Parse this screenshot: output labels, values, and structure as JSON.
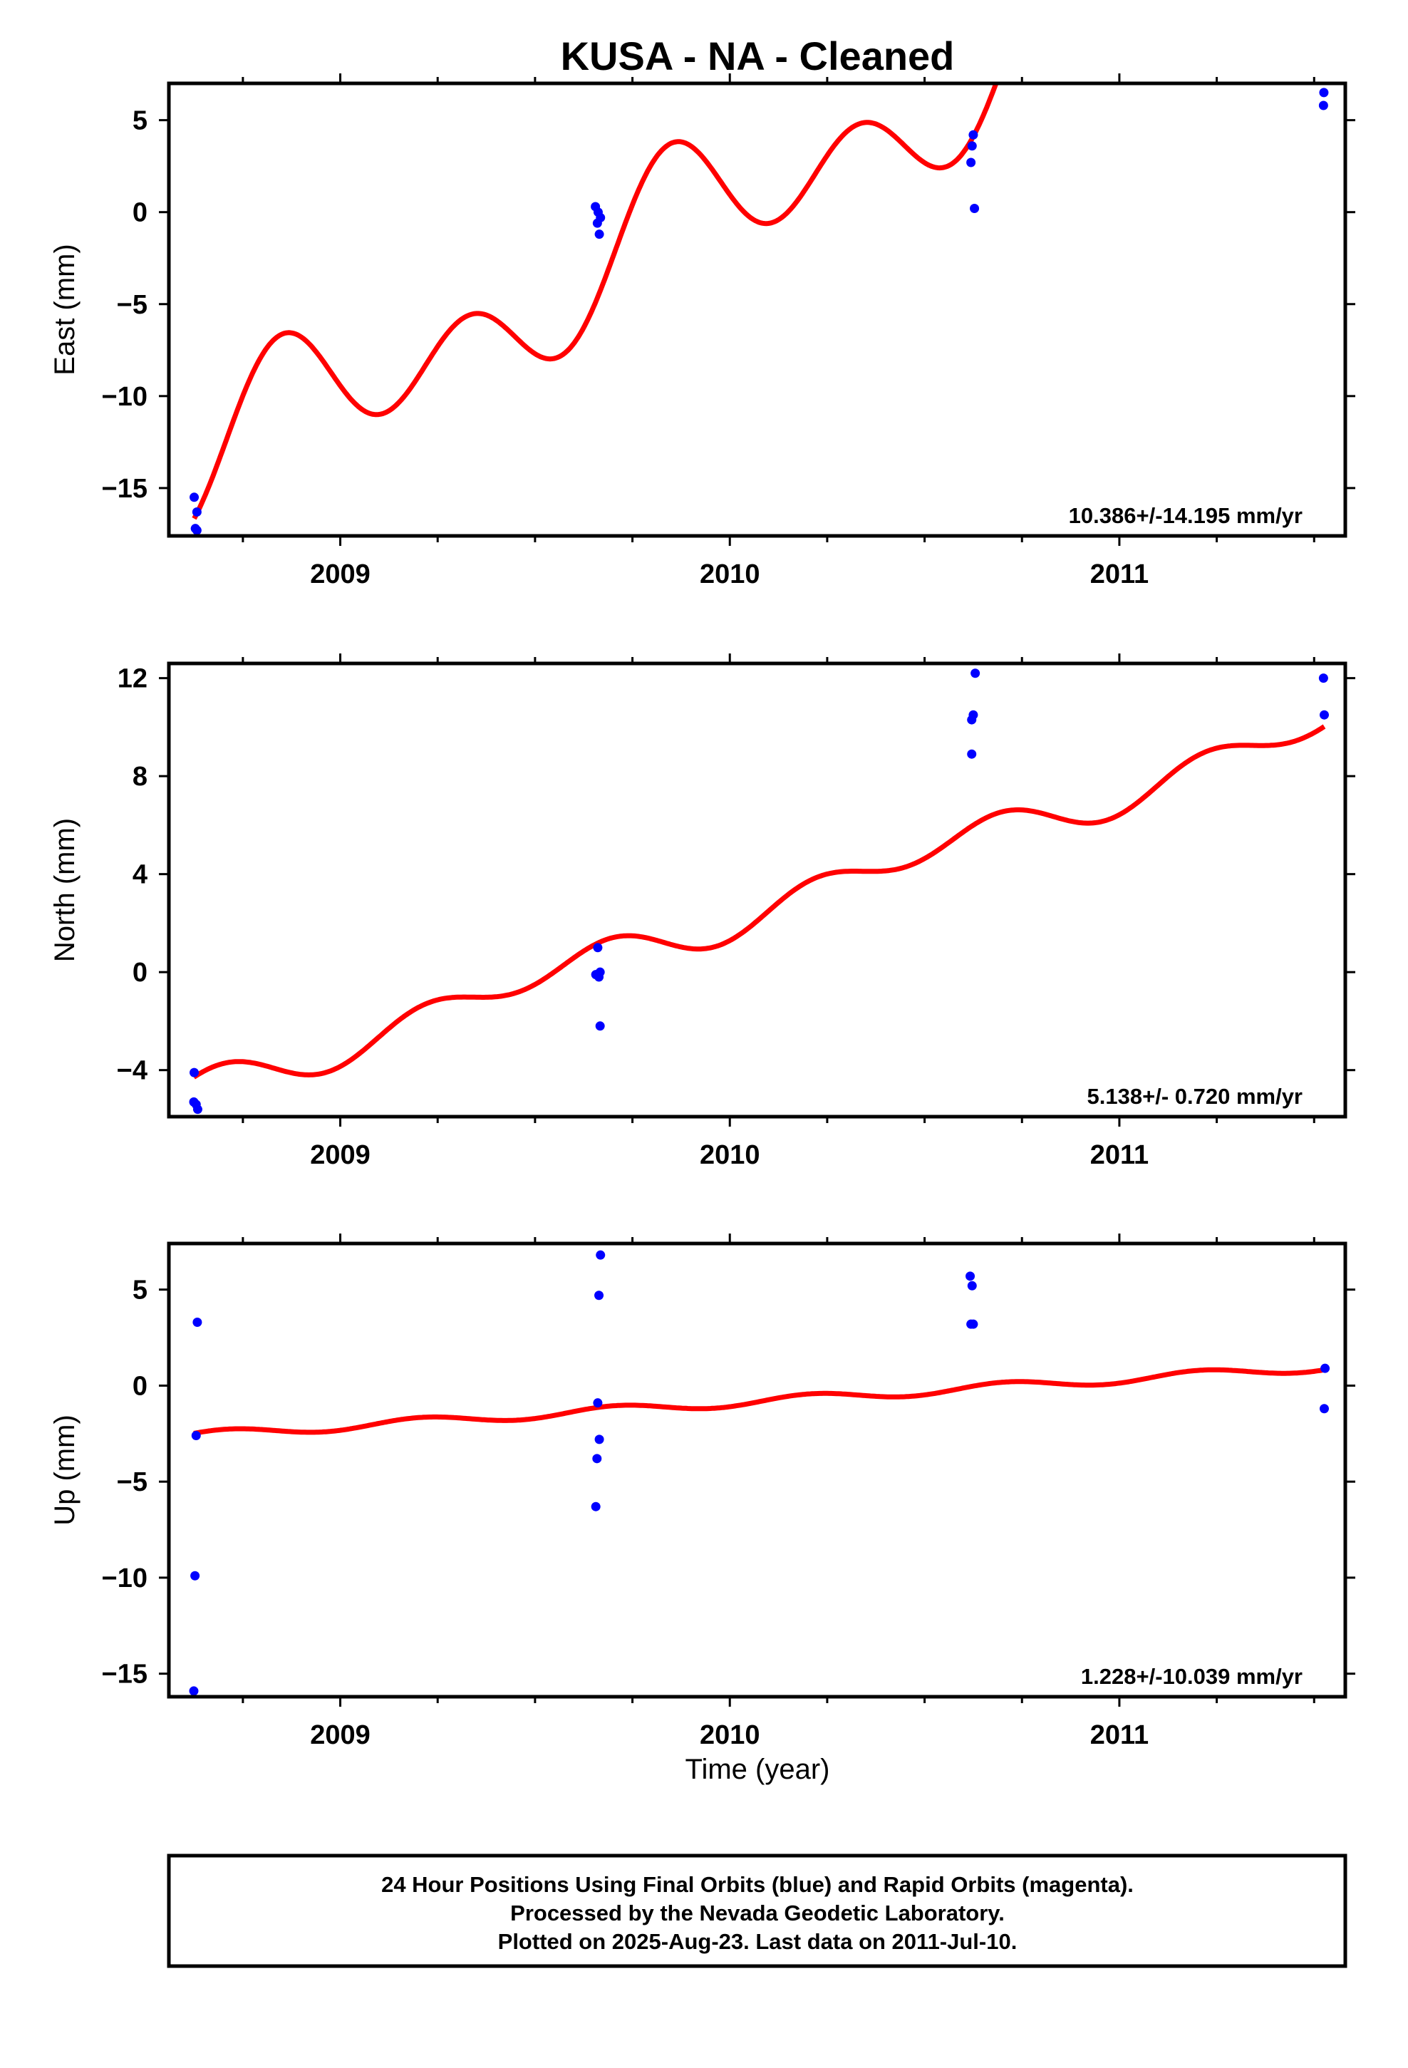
{
  "title": "KUSA  - NA - Cleaned",
  "colors": {
    "final_orbits": "#0000ff",
    "model_fit": "#ff0000",
    "axes": "#000000"
  },
  "x_axis_title": "Time (year)",
  "footer": {
    "line1": "24 Hour Positions Using Final Orbits (blue) and Rapid Orbits (magenta).",
    "line2": "Processed by the Nevada Geodetic Laboratory.",
    "line3": "Plotted on 2025-Aug-23. Last data on 2011-Jul-10."
  },
  "chart_data": [
    {
      "type": "scatter",
      "ylabel": "East (mm)",
      "xlim": [
        2008.56,
        2011.58
      ],
      "ylim": [
        -17.6,
        7.0
      ],
      "yticks": [
        5,
        0,
        -5,
        -10,
        -15
      ],
      "ytick_labels": [
        "5",
        "0",
        "−5",
        "−10",
        "−15"
      ],
      "xticks": [
        2009,
        2010,
        2011
      ],
      "xtick_labels": [
        "2009",
        "2010",
        "2011"
      ],
      "rate_label": "10.386+/-14.195 mm/yr",
      "points": [
        [
          2008.625,
          -15.5
        ],
        [
          2008.632,
          -16.3
        ],
        [
          2008.628,
          -17.2
        ],
        [
          2008.632,
          -17.3
        ],
        [
          2009.655,
          0.3
        ],
        [
          2009.662,
          0.0
        ],
        [
          2009.668,
          -0.3
        ],
        [
          2009.66,
          -0.6
        ],
        [
          2009.665,
          -1.2
        ],
        [
          2010.625,
          4.2
        ],
        [
          2010.622,
          3.6
        ],
        [
          2010.619,
          2.7
        ],
        [
          2010.628,
          0.2
        ],
        [
          2011.525,
          6.5
        ],
        [
          2011.524,
          5.8
        ]
      ],
      "fit": {
        "offset": -16.85,
        "rate": 10.386,
        "t0": 2008.62,
        "sin1": 2.1,
        "cos1": -0.4,
        "sin2": 1.1,
        "cos2": -2.6
      }
    },
    {
      "type": "scatter",
      "ylabel": "North (mm)",
      "xlim": [
        2008.56,
        2011.58
      ],
      "ylim": [
        -5.9,
        12.6
      ],
      "yticks": [
        12,
        8,
        4,
        0,
        -4
      ],
      "ytick_labels": [
        "12",
        "8",
        "4",
        "0",
        "−4"
      ],
      "xticks": [
        2009,
        2010,
        2011
      ],
      "xtick_labels": [
        "2009",
        "2010",
        "2011"
      ],
      "rate_label": "5.138+/- 0.720 mm/yr",
      "points": [
        [
          2008.625,
          -4.1
        ],
        [
          2008.624,
          -5.3
        ],
        [
          2008.63,
          -5.4
        ],
        [
          2008.634,
          -5.6
        ],
        [
          2009.661,
          1.0
        ],
        [
          2009.656,
          -0.1
        ],
        [
          2009.664,
          -0.2
        ],
        [
          2009.667,
          0.0
        ],
        [
          2009.667,
          -2.2
        ],
        [
          2010.63,
          12.2
        ],
        [
          2010.625,
          10.5
        ],
        [
          2010.621,
          10.3
        ],
        [
          2010.621,
          8.9
        ],
        [
          2011.524,
          12.0
        ],
        [
          2011.526,
          10.5
        ]
      ],
      "fit": {
        "offset": -4.33,
        "rate": 5.138,
        "t0": 2008.62,
        "sin1": -0.25,
        "cos1": 0.3,
        "sin2": 0.55,
        "cos2": 0.25
      }
    },
    {
      "type": "scatter",
      "ylabel": "Up (mm)",
      "xlim": [
        2008.56,
        2011.58
      ],
      "ylim": [
        -16.2,
        7.4
      ],
      "yticks": [
        5,
        0,
        -5,
        -10,
        -15
      ],
      "ytick_labels": [
        "5",
        "0",
        "−5",
        "−10",
        "−15"
      ],
      "xticks": [
        2009,
        2010,
        2011
      ],
      "xtick_labels": [
        "2009",
        "2010",
        "2011"
      ],
      "rate_label": "1.228+/-10.039 mm/yr",
      "points": [
        [
          2008.633,
          3.3
        ],
        [
          2008.63,
          -2.6
        ],
        [
          2008.627,
          -9.9
        ],
        [
          2008.624,
          -15.9
        ],
        [
          2009.668,
          6.8
        ],
        [
          2009.664,
          4.7
        ],
        [
          2009.661,
          -0.9
        ],
        [
          2009.665,
          -2.8
        ],
        [
          2009.659,
          -3.8
        ],
        [
          2009.656,
          -6.3
        ],
        [
          2010.617,
          5.7
        ],
        [
          2010.622,
          5.2
        ],
        [
          2010.619,
          3.2
        ],
        [
          2010.625,
          3.2
        ],
        [
          2011.528,
          0.9
        ],
        [
          2011.526,
          -1.2
        ]
      ],
      "fit": {
        "offset": -2.5,
        "rate": 1.228,
        "t0": 2008.62,
        "sin1": 0.0,
        "cos1": 0.0,
        "sin2": 0.2,
        "cos2": 0.1
      }
    }
  ]
}
